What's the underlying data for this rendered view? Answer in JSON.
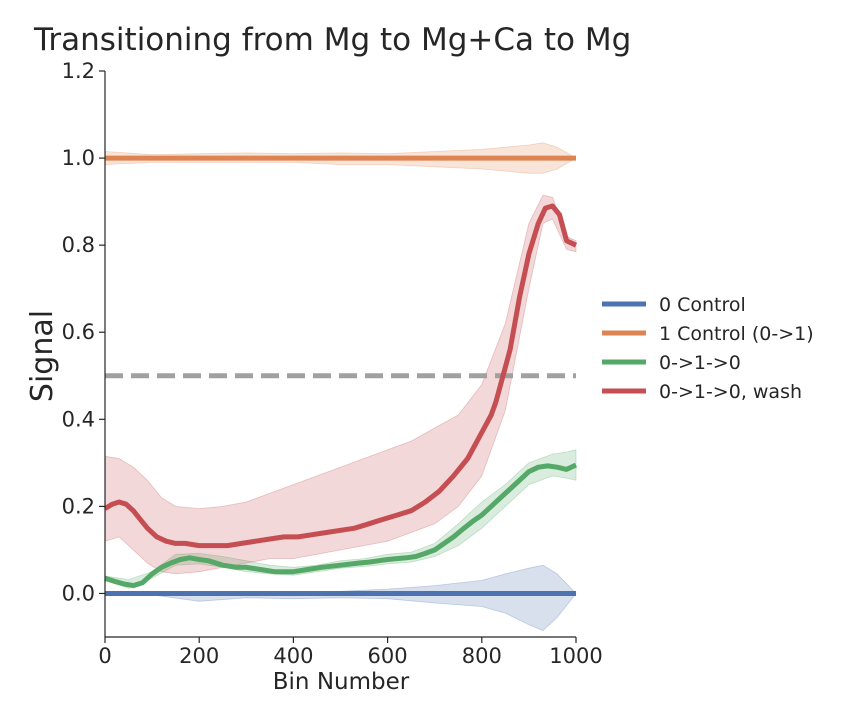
{
  "chart_data": {
    "type": "line",
    "title": "Transitioning from Mg to Mg+Ca to Mg",
    "xlabel": "Bin Number",
    "ylabel": "Signal",
    "xlim": [
      0,
      1000
    ],
    "ylim": [
      -0.1,
      1.2
    ],
    "xticks": [
      0,
      200,
      400,
      600,
      800,
      1000
    ],
    "yticks": [
      0.0,
      0.2,
      0.4,
      0.6,
      0.8,
      1.0,
      1.2
    ],
    "xtick_labels": [
      "0",
      "200",
      "400",
      "600",
      "800",
      "1000"
    ],
    "ytick_labels": [
      "0.0",
      "0.2",
      "0.4",
      "0.6",
      "0.8",
      "1.0",
      "1.2"
    ],
    "grid": false,
    "legend_position": "center-right-outside",
    "reference_line": {
      "y": 0.5,
      "style": "dashed",
      "color": "#a0a0a0"
    },
    "series": [
      {
        "name": "0 Control",
        "color": "#4c72b0",
        "x": [
          0,
          1000
        ],
        "y": [
          0.0,
          0.0
        ],
        "band": {
          "x": [
            0,
            100,
            200,
            300,
            400,
            500,
            600,
            700,
            800,
            850,
            900,
            930,
            960,
            1000
          ],
          "upper": [
            0.0,
            0.003,
            0.003,
            0.002,
            0.003,
            0.005,
            0.01,
            0.018,
            0.03,
            0.045,
            0.058,
            0.065,
            0.045,
            0.0
          ],
          "lower": [
            0.0,
            -0.003,
            -0.018,
            -0.01,
            -0.012,
            -0.01,
            -0.012,
            -0.022,
            -0.03,
            -0.045,
            -0.072,
            -0.085,
            -0.055,
            0.0
          ]
        }
      },
      {
        "name": "1 Control (0->1)",
        "color": "#dd8452",
        "x": [
          0,
          1000
        ],
        "y": [
          1.0,
          1.0
        ],
        "band": {
          "x": [
            0,
            100,
            200,
            300,
            400,
            500,
            600,
            700,
            800,
            850,
            900,
            930,
            960,
            1000
          ],
          "upper": [
            1.015,
            1.008,
            1.01,
            1.012,
            1.01,
            1.012,
            1.01,
            1.015,
            1.02,
            1.025,
            1.03,
            1.035,
            1.025,
            1.0
          ],
          "lower": [
            0.985,
            0.99,
            0.99,
            0.99,
            0.99,
            0.985,
            0.985,
            0.98,
            0.975,
            0.97,
            0.965,
            0.965,
            0.975,
            1.0
          ]
        }
      },
      {
        "name": "0->1->0",
        "color": "#55a868",
        "x": [
          0,
          20,
          40,
          60,
          80,
          100,
          120,
          140,
          160,
          180,
          200,
          220,
          250,
          280,
          300,
          330,
          360,
          400,
          430,
          460,
          500,
          540,
          560,
          580,
          600,
          620,
          640,
          660,
          680,
          700,
          720,
          740,
          760,
          780,
          800,
          820,
          840,
          860,
          880,
          900,
          920,
          940,
          960,
          980,
          1000
        ],
        "y": [
          0.035,
          0.028,
          0.022,
          0.018,
          0.025,
          0.045,
          0.06,
          0.07,
          0.078,
          0.082,
          0.078,
          0.075,
          0.065,
          0.06,
          0.06,
          0.055,
          0.05,
          0.05,
          0.055,
          0.06,
          0.065,
          0.07,
          0.072,
          0.075,
          0.078,
          0.08,
          0.082,
          0.085,
          0.092,
          0.1,
          0.115,
          0.13,
          0.148,
          0.165,
          0.18,
          0.2,
          0.22,
          0.24,
          0.26,
          0.28,
          0.29,
          0.293,
          0.29,
          0.285,
          0.295
        ],
        "band": {
          "x": [
            0,
            50,
            100,
            150,
            200,
            250,
            300,
            350,
            400,
            450,
            500,
            550,
            600,
            650,
            700,
            750,
            800,
            850,
            900,
            950,
            980,
            1000
          ],
          "upper": [
            0.04,
            0.032,
            0.05,
            0.09,
            0.092,
            0.085,
            0.075,
            0.065,
            0.06,
            0.065,
            0.075,
            0.08,
            0.09,
            0.095,
            0.115,
            0.16,
            0.21,
            0.25,
            0.3,
            0.32,
            0.325,
            0.33
          ],
          "lower": [
            0.03,
            0.012,
            0.035,
            0.065,
            0.068,
            0.06,
            0.05,
            0.045,
            0.042,
            0.05,
            0.058,
            0.062,
            0.068,
            0.072,
            0.085,
            0.11,
            0.15,
            0.2,
            0.25,
            0.27,
            0.265,
            0.26
          ]
        }
      },
      {
        "name": "0->1->0, wash",
        "color": "#c44e52",
        "x": [
          0,
          15,
          30,
          45,
          60,
          75,
          90,
          110,
          130,
          150,
          170,
          200,
          230,
          260,
          290,
          320,
          350,
          380,
          410,
          440,
          470,
          500,
          530,
          560,
          590,
          620,
          650,
          680,
          710,
          740,
          770,
          800,
          820,
          830,
          845,
          860,
          880,
          900,
          920,
          935,
          950,
          965,
          980,
          1000
        ],
        "y": [
          0.195,
          0.205,
          0.21,
          0.205,
          0.19,
          0.17,
          0.15,
          0.13,
          0.12,
          0.115,
          0.115,
          0.11,
          0.11,
          0.11,
          0.115,
          0.12,
          0.125,
          0.13,
          0.13,
          0.135,
          0.14,
          0.145,
          0.15,
          0.16,
          0.17,
          0.18,
          0.19,
          0.21,
          0.235,
          0.27,
          0.31,
          0.37,
          0.41,
          0.44,
          0.5,
          0.56,
          0.68,
          0.78,
          0.85,
          0.885,
          0.89,
          0.87,
          0.81,
          0.8
        ],
        "band": {
          "x": [
            0,
            30,
            60,
            90,
            120,
            150,
            200,
            250,
            300,
            350,
            400,
            450,
            500,
            550,
            600,
            650,
            700,
            750,
            800,
            850,
            900,
            930,
            950,
            980,
            1000
          ],
          "upper": [
            0.315,
            0.31,
            0.29,
            0.26,
            0.22,
            0.2,
            0.195,
            0.2,
            0.21,
            0.23,
            0.25,
            0.27,
            0.29,
            0.31,
            0.33,
            0.35,
            0.38,
            0.41,
            0.48,
            0.62,
            0.85,
            0.915,
            0.91,
            0.82,
            0.81
          ],
          "lower": [
            0.12,
            0.13,
            0.1,
            0.07,
            0.05,
            0.045,
            0.05,
            0.06,
            0.07,
            0.08,
            0.08,
            0.09,
            0.1,
            0.11,
            0.12,
            0.14,
            0.16,
            0.2,
            0.27,
            0.42,
            0.7,
            0.85,
            0.86,
            0.79,
            0.785
          ]
        }
      }
    ]
  }
}
